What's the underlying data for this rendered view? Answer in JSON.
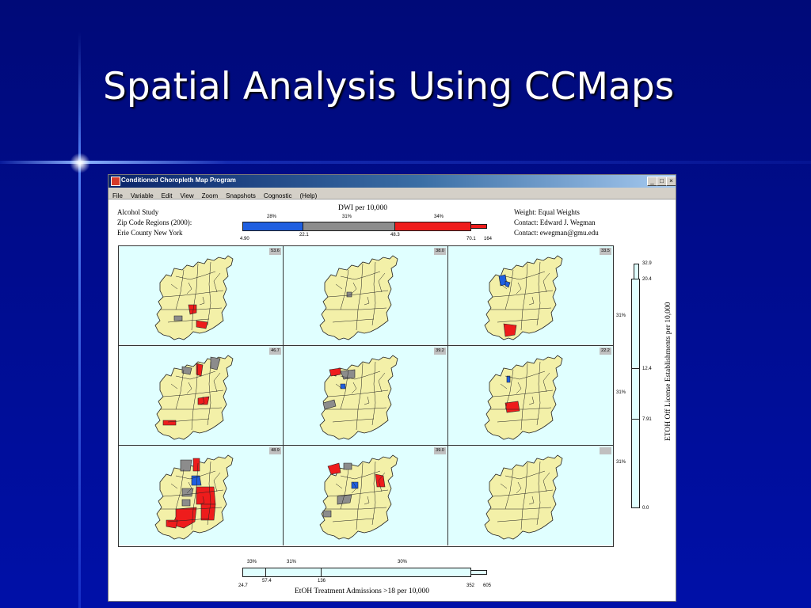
{
  "slide": {
    "title": "Spatial Analysis Using CCMaps",
    "colors": {
      "background": "#00008b",
      "title_text": "#ffffff"
    }
  },
  "window": {
    "title": "Conditioned Choropleth Map Program",
    "controls": {
      "minimize": "_",
      "maximize": "□",
      "close": "×"
    },
    "menu": [
      "File",
      "Variable",
      "Edit",
      "View",
      "Zoom",
      "Snapshots",
      "Cognostic",
      "(Help)"
    ]
  },
  "info": {
    "left": [
      "Alcohol Study",
      "Zip Code Regions (2000):",
      "Erie County New York"
    ],
    "right": [
      "Weight: Equal Weights",
      "Contact:  Edward J. Wegman",
      "Contact:  ewegman@gmu.edu"
    ]
  },
  "top_slider": {
    "title": "DWI per 10,000",
    "percents": [
      "28%",
      "31%",
      "34%"
    ],
    "values": [
      "4.90",
      "22.1",
      "48.3",
      "70.1",
      "164"
    ],
    "colors": {
      "low": "#1f5fe0",
      "mid": "#8c8c8c",
      "high": "#ee1c1c"
    }
  },
  "panels": {
    "values": [
      "53.6",
      "38.0",
      "33.5",
      "46.7",
      "39.2",
      "22.2",
      "48.9",
      "39.0",
      ""
    ],
    "colors": {
      "background": "#e0ffff",
      "region": "#f3f0a8",
      "outline": "#222222",
      "low": "#1f5fe0",
      "mid": "#8c8c8c",
      "high": "#ee1c1c"
    }
  },
  "right_slider": {
    "title": "ETOH Off License Establishments per 10,000",
    "values": [
      "32.9",
      "20.4",
      "12.4",
      "7.91",
      "0.0"
    ],
    "percents": [
      "31%",
      "31%",
      "31%"
    ]
  },
  "bottom_slider": {
    "title": "EtOH Treatment Admissions >18 per 10,000",
    "percents": [
      "33%",
      "31%",
      "30%"
    ],
    "values": [
      "24.7",
      "57.4",
      "136",
      "352",
      "605"
    ]
  }
}
